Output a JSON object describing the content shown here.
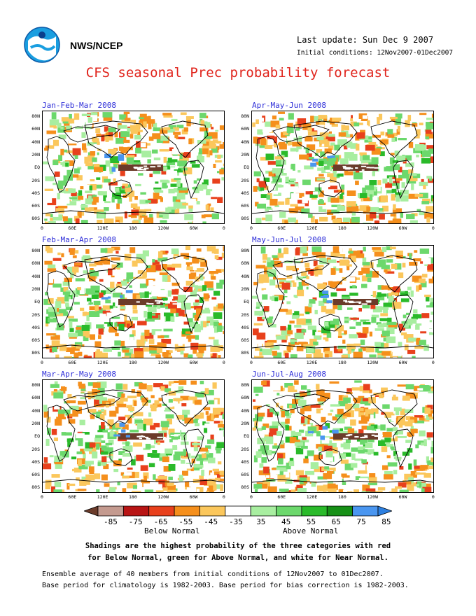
{
  "header": {
    "org": "NWS/NCEP",
    "last_update": "Last update: Sun Dec  9 2007",
    "initial_conditions": "Initial conditions: 12Nov2007-01Dec2007",
    "title": "CFS seasonal Prec probability forecast"
  },
  "panels": [
    {
      "title": "Jan-Feb-Mar 2008"
    },
    {
      "title": "Apr-May-Jun 2008"
    },
    {
      "title": "Feb-Mar-Apr 2008"
    },
    {
      "title": "May-Jun-Jul 2008"
    },
    {
      "title": "Mar-Apr-May 2008"
    },
    {
      "title": "Jun-Jul-Aug 2008"
    }
  ],
  "axes": {
    "lat_labels": [
      "80N",
      "60N",
      "40N",
      "20N",
      "EQ",
      "20S",
      "40S",
      "60S",
      "80S"
    ],
    "lon_labels": [
      "0",
      "60E",
      "120E",
      "180",
      "120W",
      "60W",
      "0"
    ]
  },
  "legend": {
    "labels": [
      "-85",
      "-75",
      "-65",
      "-55",
      "-45",
      "-35",
      "35",
      "45",
      "55",
      "65",
      "75",
      "85"
    ],
    "colors": [
      "#6b3b2a",
      "#c49a8f",
      "#b81414",
      "#e8401c",
      "#f58f1c",
      "#fbc75c",
      "#ffffff",
      "#a8eea0",
      "#6cd86c",
      "#2aba2a",
      "#169016",
      "#4a96f0",
      "#2c7fe0"
    ],
    "below": "Below Normal",
    "above": "Above Normal"
  },
  "notes": {
    "line1": "Shadings are the highest probability of the three categories with red",
    "line2": "for Below Normal, green for Above Normal, and white for Near Normal.",
    "ensemble1": "Ensemble average of 40 members from initial conditions of 12Nov2007 to 01Dec2007.",
    "ensemble2": "Base period for climatology is 1982-2003. Base period for bias correction is 1982-2003."
  }
}
